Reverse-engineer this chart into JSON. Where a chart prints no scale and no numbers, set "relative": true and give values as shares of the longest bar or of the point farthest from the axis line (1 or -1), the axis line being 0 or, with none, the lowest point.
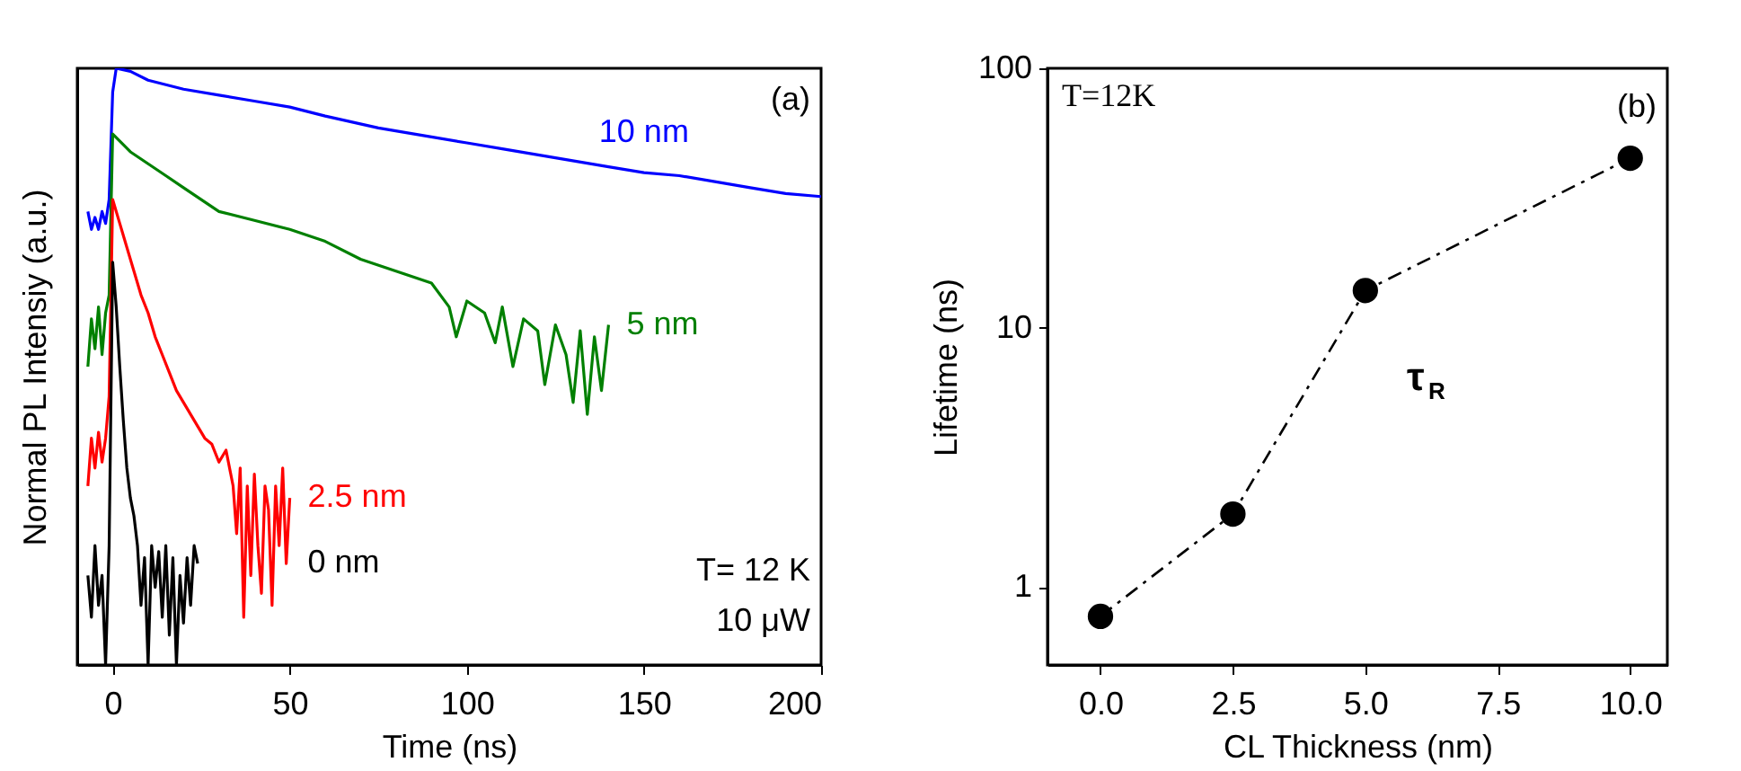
{
  "chart_data": [
    {
      "type": "line",
      "relative": true,
      "xlabel": "Time (ns)",
      "ylabel": "Normal PL Intensiy (a.u.)",
      "xlim": [
        -10,
        200
      ],
      "xticks": [
        0,
        50,
        100,
        150,
        200
      ],
      "tick_labels": "x",
      "annotations": [
        "(a)",
        "T= 12 K",
        "10 μW"
      ],
      "series": [
        {
          "name": "10 nm",
          "color": "#0000ff",
          "x": [
            -7,
            -6,
            -5,
            -4,
            -3,
            -2,
            -1,
            0,
            1,
            5,
            10,
            20,
            30,
            40,
            50,
            60,
            75,
            90,
            100,
            110,
            125,
            140,
            150,
            160,
            170,
            180,
            190,
            200
          ],
          "values": [
            0.76,
            0.73,
            0.75,
            0.73,
            0.76,
            0.74,
            0.78,
            0.96,
            1.0,
            0.995,
            0.98,
            0.965,
            0.955,
            0.945,
            0.935,
            0.92,
            0.9,
            0.885,
            0.875,
            0.865,
            0.85,
            0.835,
            0.825,
            0.82,
            0.81,
            0.8,
            0.79,
            0.785
          ]
        },
        {
          "name": "5 nm",
          "color": "#008000",
          "x": [
            -7,
            -6,
            -5,
            -4,
            -3,
            -2,
            -1,
            0,
            5,
            10,
            15,
            20,
            25,
            30,
            40,
            50,
            60,
            70,
            80,
            90,
            95,
            97,
            100,
            105,
            108,
            110,
            113,
            116,
            120,
            122,
            125,
            128,
            130,
            132,
            134,
            136,
            138,
            140
          ],
          "values": [
            0.5,
            0.58,
            0.53,
            0.6,
            0.52,
            0.59,
            0.62,
            0.89,
            0.86,
            0.84,
            0.82,
            0.8,
            0.78,
            0.76,
            0.745,
            0.73,
            0.71,
            0.68,
            0.66,
            0.64,
            0.6,
            0.55,
            0.61,
            0.59,
            0.54,
            0.6,
            0.5,
            0.58,
            0.56,
            0.47,
            0.57,
            0.52,
            0.44,
            0.56,
            0.42,
            0.55,
            0.46,
            0.57
          ]
        },
        {
          "name": "2.5 nm",
          "color": "#ff0000",
          "x": [
            -7,
            -6,
            -5,
            -4,
            -3,
            -2,
            -1,
            0,
            2,
            4,
            6,
            8,
            10,
            12,
            14,
            16,
            18,
            20,
            22,
            24,
            26,
            28,
            30,
            32,
            34,
            35,
            36,
            37,
            38,
            39,
            40,
            41,
            42,
            43,
            44,
            45,
            46,
            47,
            48,
            49,
            50
          ],
          "values": [
            0.3,
            0.38,
            0.33,
            0.39,
            0.34,
            0.38,
            0.45,
            0.78,
            0.74,
            0.7,
            0.66,
            0.62,
            0.59,
            0.55,
            0.52,
            0.49,
            0.46,
            0.44,
            0.42,
            0.4,
            0.38,
            0.37,
            0.34,
            0.36,
            0.3,
            0.22,
            0.33,
            0.08,
            0.3,
            0.15,
            0.32,
            0.2,
            0.12,
            0.3,
            0.26,
            0.1,
            0.3,
            0.2,
            0.33,
            0.17,
            0.28
          ]
        },
        {
          "name": "0 nm",
          "color": "#000000",
          "x": [
            -7,
            -6,
            -5,
            -4,
            -3,
            -2,
            -1,
            0,
            1,
            2,
            3,
            4,
            5,
            6,
            7,
            8,
            9,
            10,
            11,
            12,
            13,
            14,
            15,
            16,
            17,
            18,
            19,
            20,
            21,
            22,
            23,
            24
          ],
          "values": [
            0.15,
            0.08,
            0.2,
            0.1,
            0.15,
            0.0,
            0.2,
            0.675,
            0.6,
            0.5,
            0.41,
            0.33,
            0.28,
            0.25,
            0.2,
            0.1,
            0.18,
            0.0,
            0.2,
            0.13,
            0.19,
            0.08,
            0.2,
            0.05,
            0.18,
            0.0,
            0.15,
            0.07,
            0.18,
            0.1,
            0.2,
            0.17
          ]
        }
      ]
    },
    {
      "type": "line",
      "marker": "circle",
      "line_style": "dashed",
      "log": "y",
      "xlabel": "CL Thickness (nm)",
      "ylabel": "Lifetime (ns)",
      "xlim": [
        -1,
        10.7
      ],
      "xticks": [
        {
          "value": 0,
          "label": "0.0"
        },
        {
          "value": 2.5,
          "label": "2.5"
        },
        {
          "value": 5,
          "label": "5.0"
        },
        {
          "value": 7.5,
          "label": "7.5"
        },
        {
          "value": 10,
          "label": "10.0"
        }
      ],
      "ylim": [
        0.5,
        100
      ],
      "yticks": [
        1,
        10,
        100
      ],
      "annotations": [
        "T=12K",
        "(b)",
        "τ$_{R}$"
      ],
      "series": [
        {
          "color": "#000000",
          "x": [
            0,
            2.5,
            5,
            10
          ],
          "values": [
            0.77,
            1.91,
            13.9,
            45
          ]
        }
      ]
    }
  ]
}
